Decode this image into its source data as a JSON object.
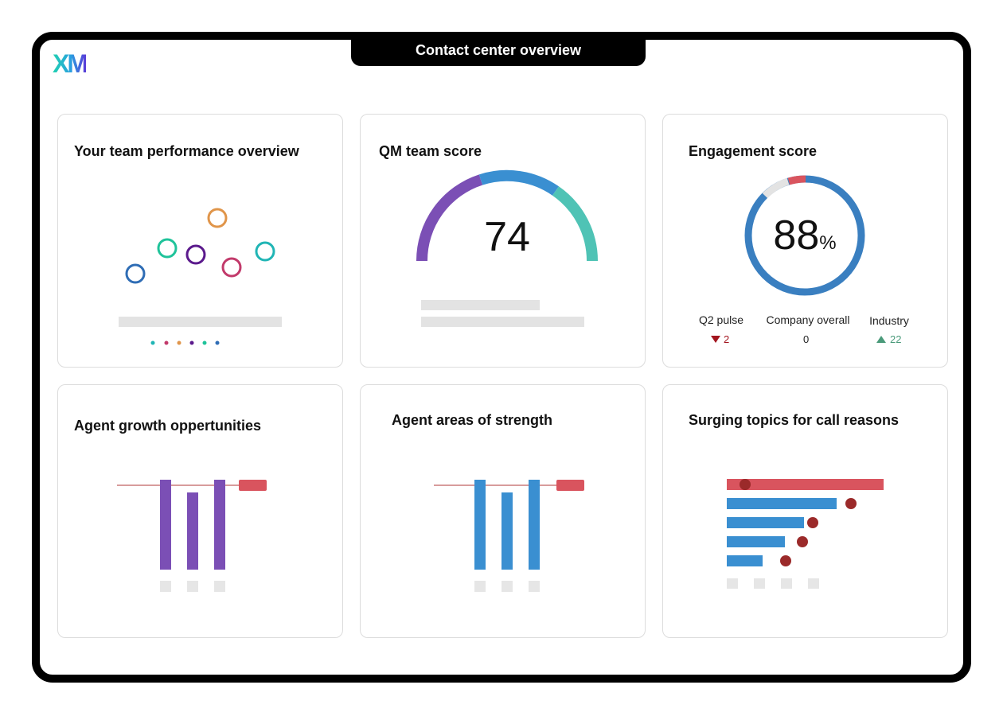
{
  "header": {
    "title": "Contact center overview",
    "logo": "XM"
  },
  "cards": {
    "team_performance": {
      "title": "Your team performance overview"
    },
    "qm_score": {
      "title": "QM team score",
      "value": "74"
    },
    "engagement": {
      "title": "Engagement score",
      "value": "88",
      "unit": "%",
      "percent": 88,
      "stats": [
        {
          "label": "Q2 pulse",
          "value": "2",
          "trend": "down"
        },
        {
          "label": "Company overall",
          "value": "0",
          "trend": "none"
        },
        {
          "label": "Industry",
          "value": "22",
          "trend": "up"
        }
      ]
    },
    "growth": {
      "title": "Agent growth oppertunities"
    },
    "strength": {
      "title": "Agent areas of strength"
    },
    "surging": {
      "title": "Surging topics for call reasons"
    }
  },
  "colors": {
    "purple": "#7b4fb5",
    "blue": "#3a8fd1",
    "teal": "#4fc3b5",
    "red": "#d9545e",
    "dark_red": "#9b2a2a",
    "green": "#4a9a7a"
  }
}
